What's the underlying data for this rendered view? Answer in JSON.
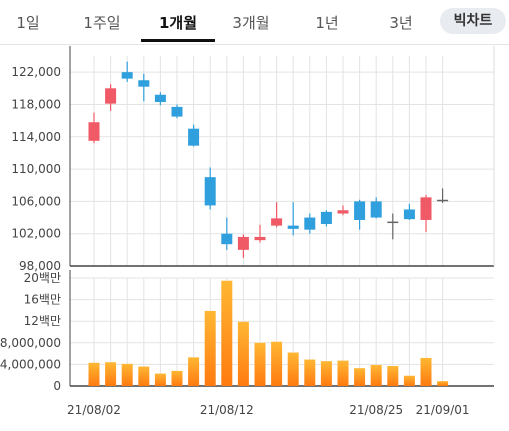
{
  "tabs": [
    {
      "label": "1일"
    },
    {
      "label": "1주일"
    },
    {
      "label": "1개월"
    },
    {
      "label": "3개월"
    },
    {
      "label": "1년"
    },
    {
      "label": "3년"
    },
    {
      "label": "빅차트"
    }
  ],
  "active_tab": "1개월",
  "colors": {
    "up": "#f05a66",
    "down": "#2f9fdd",
    "flat": "#666666",
    "volume_top": "#ffb733",
    "volume_bottom": "#ff7a10"
  },
  "chart_data": [
    {
      "type": "candlestick",
      "title": "",
      "ylim": [
        98000,
        124000
      ],
      "y_ticks": [
        "122,000",
        "118,000",
        "114,000",
        "110,000",
        "106,000",
        "102,000",
        "98,000"
      ],
      "x_tick_labels": [
        "21/08/02",
        "21/08/12",
        "21/08/25",
        "21/09/01"
      ],
      "candles": [
        {
          "open": 113500,
          "close": 115800,
          "high": 117000,
          "low": 113200
        },
        {
          "open": 118100,
          "close": 120000,
          "high": 120500,
          "low": 117200
        },
        {
          "open": 122000,
          "close": 121200,
          "high": 123300,
          "low": 120800
        },
        {
          "open": 121000,
          "close": 120200,
          "high": 121800,
          "low": 118400
        },
        {
          "open": 119200,
          "close": 118300,
          "high": 119500,
          "low": 117900
        },
        {
          "open": 117700,
          "close": 116500,
          "high": 118000,
          "low": 116300
        },
        {
          "open": 115000,
          "close": 112900,
          "high": 115500,
          "low": 112800
        },
        {
          "open": 109000,
          "close": 105500,
          "high": 110200,
          "low": 105000
        },
        {
          "open": 102000,
          "close": 100700,
          "high": 104000,
          "low": 100000
        },
        {
          "open": 100000,
          "close": 101600,
          "high": 101900,
          "low": 99000
        },
        {
          "open": 101200,
          "close": 101600,
          "high": 103100,
          "low": 100900
        },
        {
          "open": 103000,
          "close": 103900,
          "high": 105900,
          "low": 102800
        },
        {
          "open": 103000,
          "close": 102600,
          "high": 105900,
          "low": 101800
        },
        {
          "open": 104000,
          "close": 102500,
          "high": 104500,
          "low": 102000
        },
        {
          "open": 104700,
          "close": 103200,
          "high": 104900,
          "low": 102900
        },
        {
          "open": 104500,
          "close": 104900,
          "high": 105500,
          "low": 104300
        },
        {
          "open": 106000,
          "close": 103700,
          "high": 106200,
          "low": 102500
        },
        {
          "open": 106000,
          "close": 104000,
          "high": 106500,
          "low": 103900
        },
        {
          "open": 103500,
          "close": 103500,
          "high": 104500,
          "low": 101300
        },
        {
          "open": 105000,
          "close": 103800,
          "high": 105700,
          "low": 103700
        },
        {
          "open": 103700,
          "close": 106500,
          "high": 106800,
          "low": 102200
        },
        {
          "open": 106200,
          "close": 106200,
          "high": 107600,
          "low": 105800
        }
      ]
    },
    {
      "type": "bar",
      "title": "",
      "ylim": [
        0,
        20000000
      ],
      "y_ticks": [
        "20백만",
        "16백만",
        "12백만",
        "8,000,000",
        "4,000,000",
        "0"
      ],
      "values": [
        4300000,
        4400000,
        4100000,
        3600000,
        2300000,
        2800000,
        5300000,
        13900000,
        19500000,
        11900000,
        8000000,
        8200000,
        6200000,
        4900000,
        4600000,
        4700000,
        3300000,
        3900000,
        3700000,
        1900000,
        5200000,
        900000
      ]
    }
  ]
}
